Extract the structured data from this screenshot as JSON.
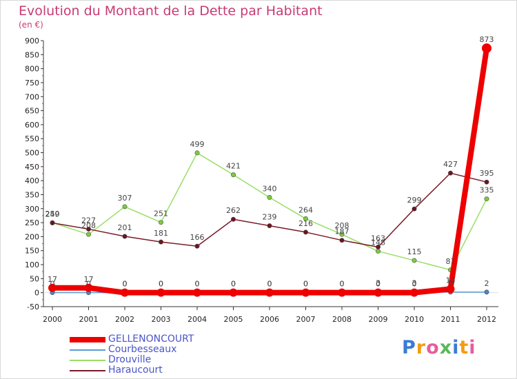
{
  "title": "Evolution du Montant de la Dette par Habitant",
  "unit_label": "(en €)",
  "logo_text": "Proxiti",
  "chart_data": {
    "type": "line",
    "x": [
      "2000",
      "2001",
      "2002",
      "2003",
      "2004",
      "2005",
      "2006",
      "2007",
      "2008",
      "2009",
      "2010",
      "2011",
      "2012"
    ],
    "ylim": [
      -50,
      900
    ],
    "yticks": [
      -50,
      0,
      50,
      100,
      150,
      200,
      250,
      300,
      350,
      400,
      450,
      500,
      550,
      600,
      650,
      700,
      750,
      800,
      850,
      900
    ],
    "grid": false,
    "legend_position": "bottom-left",
    "series": [
      {
        "name": "GELLENONCOURT",
        "color": "#ee0000",
        "emphasis": true,
        "values": [
          17,
          17,
          0,
          0,
          0,
          0,
          0,
          0,
          0,
          0,
          0,
          13,
          873
        ],
        "labels": [
          "17",
          "17",
          "0",
          "0",
          "0",
          "0",
          "0",
          "0",
          "0",
          "0",
          "0",
          "13",
          "873"
        ]
      },
      {
        "name": "Courbesseaux",
        "color": "#5b9bd5",
        "values": [
          0,
          0,
          0,
          0,
          0,
          0,
          0,
          0,
          0,
          3,
          3,
          2,
          2
        ],
        "labels": [
          "0",
          "0",
          "0",
          "0",
          "0",
          "0",
          "0",
          "0",
          "0",
          "3",
          "3",
          "2",
          "2"
        ]
      },
      {
        "name": "Drouville",
        "color": "#99dd66",
        "values": [
          250,
          208,
          307,
          251,
          499,
          421,
          340,
          264,
          208,
          148,
          115,
          81,
          335
        ],
        "labels": [
          "250",
          "208",
          "307",
          "251",
          "499",
          "421",
          "340",
          "264",
          "208",
          "148",
          "115",
          "81",
          "335"
        ]
      },
      {
        "name": "Haraucourt",
        "color": "#7a1a26",
        "values": [
          249,
          227,
          201,
          181,
          166,
          262,
          239,
          216,
          187,
          163,
          299,
          427,
          395
        ],
        "labels": [
          "249",
          "227",
          "201",
          "181",
          "166",
          "262",
          "239",
          "216",
          "187",
          "163",
          "299",
          "427",
          "395"
        ]
      }
    ]
  }
}
